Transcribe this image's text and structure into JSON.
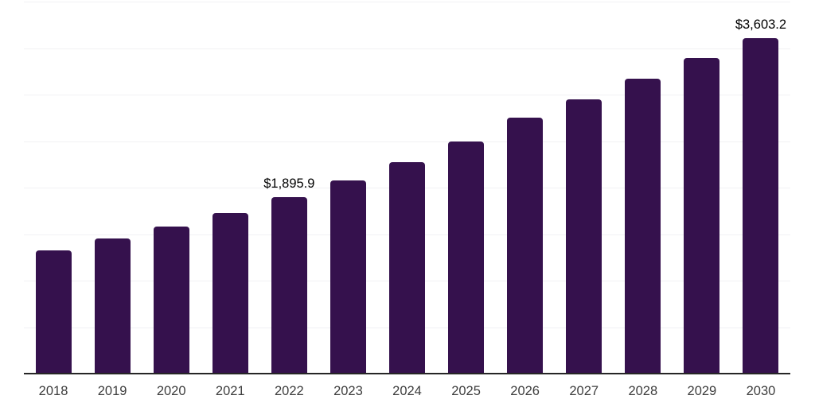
{
  "chart_data": {
    "type": "bar",
    "title": "",
    "xlabel": "",
    "ylabel": "",
    "categories": [
      "2018",
      "2019",
      "2020",
      "2021",
      "2022",
      "2023",
      "2024",
      "2025",
      "2026",
      "2027",
      "2028",
      "2029",
      "2030"
    ],
    "values": [
      1325,
      1455,
      1580,
      1725,
      1895.9,
      2075,
      2275,
      2500,
      2755,
      2950,
      3170,
      3390,
      3603.2
    ],
    "value_labels": [
      "",
      "",
      "",
      "",
      "$1,895.9",
      "",
      "",
      "",
      "",
      "",
      "",
      "",
      "$3,603.2"
    ],
    "ylim": [
      0,
      4000
    ],
    "grid": {
      "horizontal": true,
      "step": 500
    },
    "legend": "none",
    "y_tick_labels_shown": false
  },
  "style": {
    "bar_color": "#35114d",
    "axis_line_color": "#262626",
    "gridline_color": "#f1f1f4",
    "tick_label_color": "#3d3d3d",
    "data_label_color": "#000000",
    "background": "#ffffff"
  }
}
